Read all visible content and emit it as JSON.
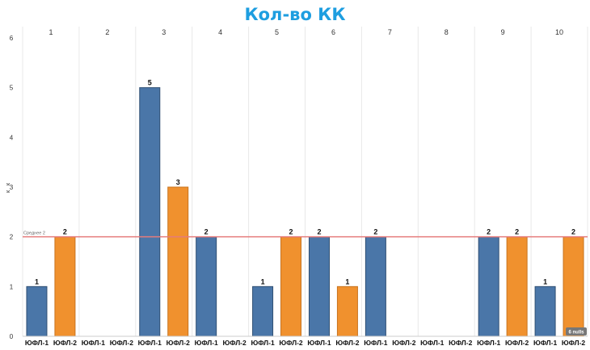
{
  "colors": {
    "title": "#1e9ee0",
    "series_1": "#4a76a8",
    "series_2": "#f0912e",
    "average_line": "#e57b7b",
    "grid": "#e8e8e8",
    "axis_text": "#333333"
  },
  "chart_data": {
    "type": "bar",
    "title": "Кол-во КК",
    "xlabel": "",
    "ylabel": "к к",
    "ylim": [
      0,
      6
    ],
    "yticks": [
      "0",
      "1",
      "2",
      "3",
      "4",
      "5",
      "6"
    ],
    "groups": [
      "1",
      "2",
      "3",
      "4",
      "5",
      "6",
      "7",
      "8",
      "9",
      "10"
    ],
    "category_labels": [
      "ЮФЛ-1",
      "ЮФЛ-2"
    ],
    "series": [
      {
        "values": [
          1,
          null,
          5,
          2,
          1,
          2,
          2,
          null,
          2,
          1
        ]
      },
      {
        "values": [
          2,
          null,
          3,
          null,
          2,
          1,
          null,
          null,
          2,
          2
        ]
      }
    ],
    "reference_line": {
      "label": "Среднее 2",
      "value": 2
    },
    "grid": true,
    "legend": "none",
    "badge": "6 nulls"
  }
}
